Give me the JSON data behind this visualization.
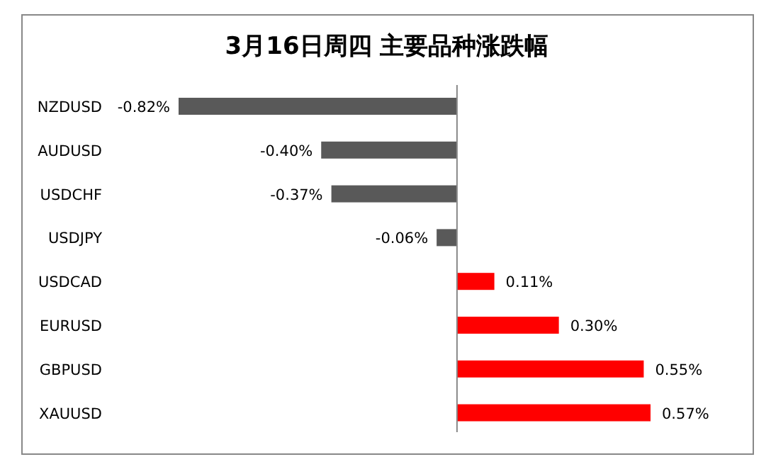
{
  "chart_data": {
    "type": "bar",
    "orientation": "horizontal",
    "title": "3月16日周四 主要品种涨跌幅",
    "categories": [
      "NZDUSD",
      "AUDUSD",
      "USDCHF",
      "USDJPY",
      "USDCAD",
      "EURUSD",
      "GBPUSD",
      "XAUUSD"
    ],
    "values": [
      -0.82,
      -0.4,
      -0.37,
      -0.06,
      0.11,
      0.3,
      0.55,
      0.57
    ],
    "colors": [
      "#595959",
      "#595959",
      "#595959",
      "#595959",
      "#ff0000",
      "#ff0000",
      "#ff0000",
      "#ff0000"
    ],
    "value_labels": [
      "-0.82%",
      "-0.40%",
      "-0.37%",
      "-0.06%",
      "0.11%",
      "0.30%",
      "0.55%",
      "0.57%"
    ]
  }
}
